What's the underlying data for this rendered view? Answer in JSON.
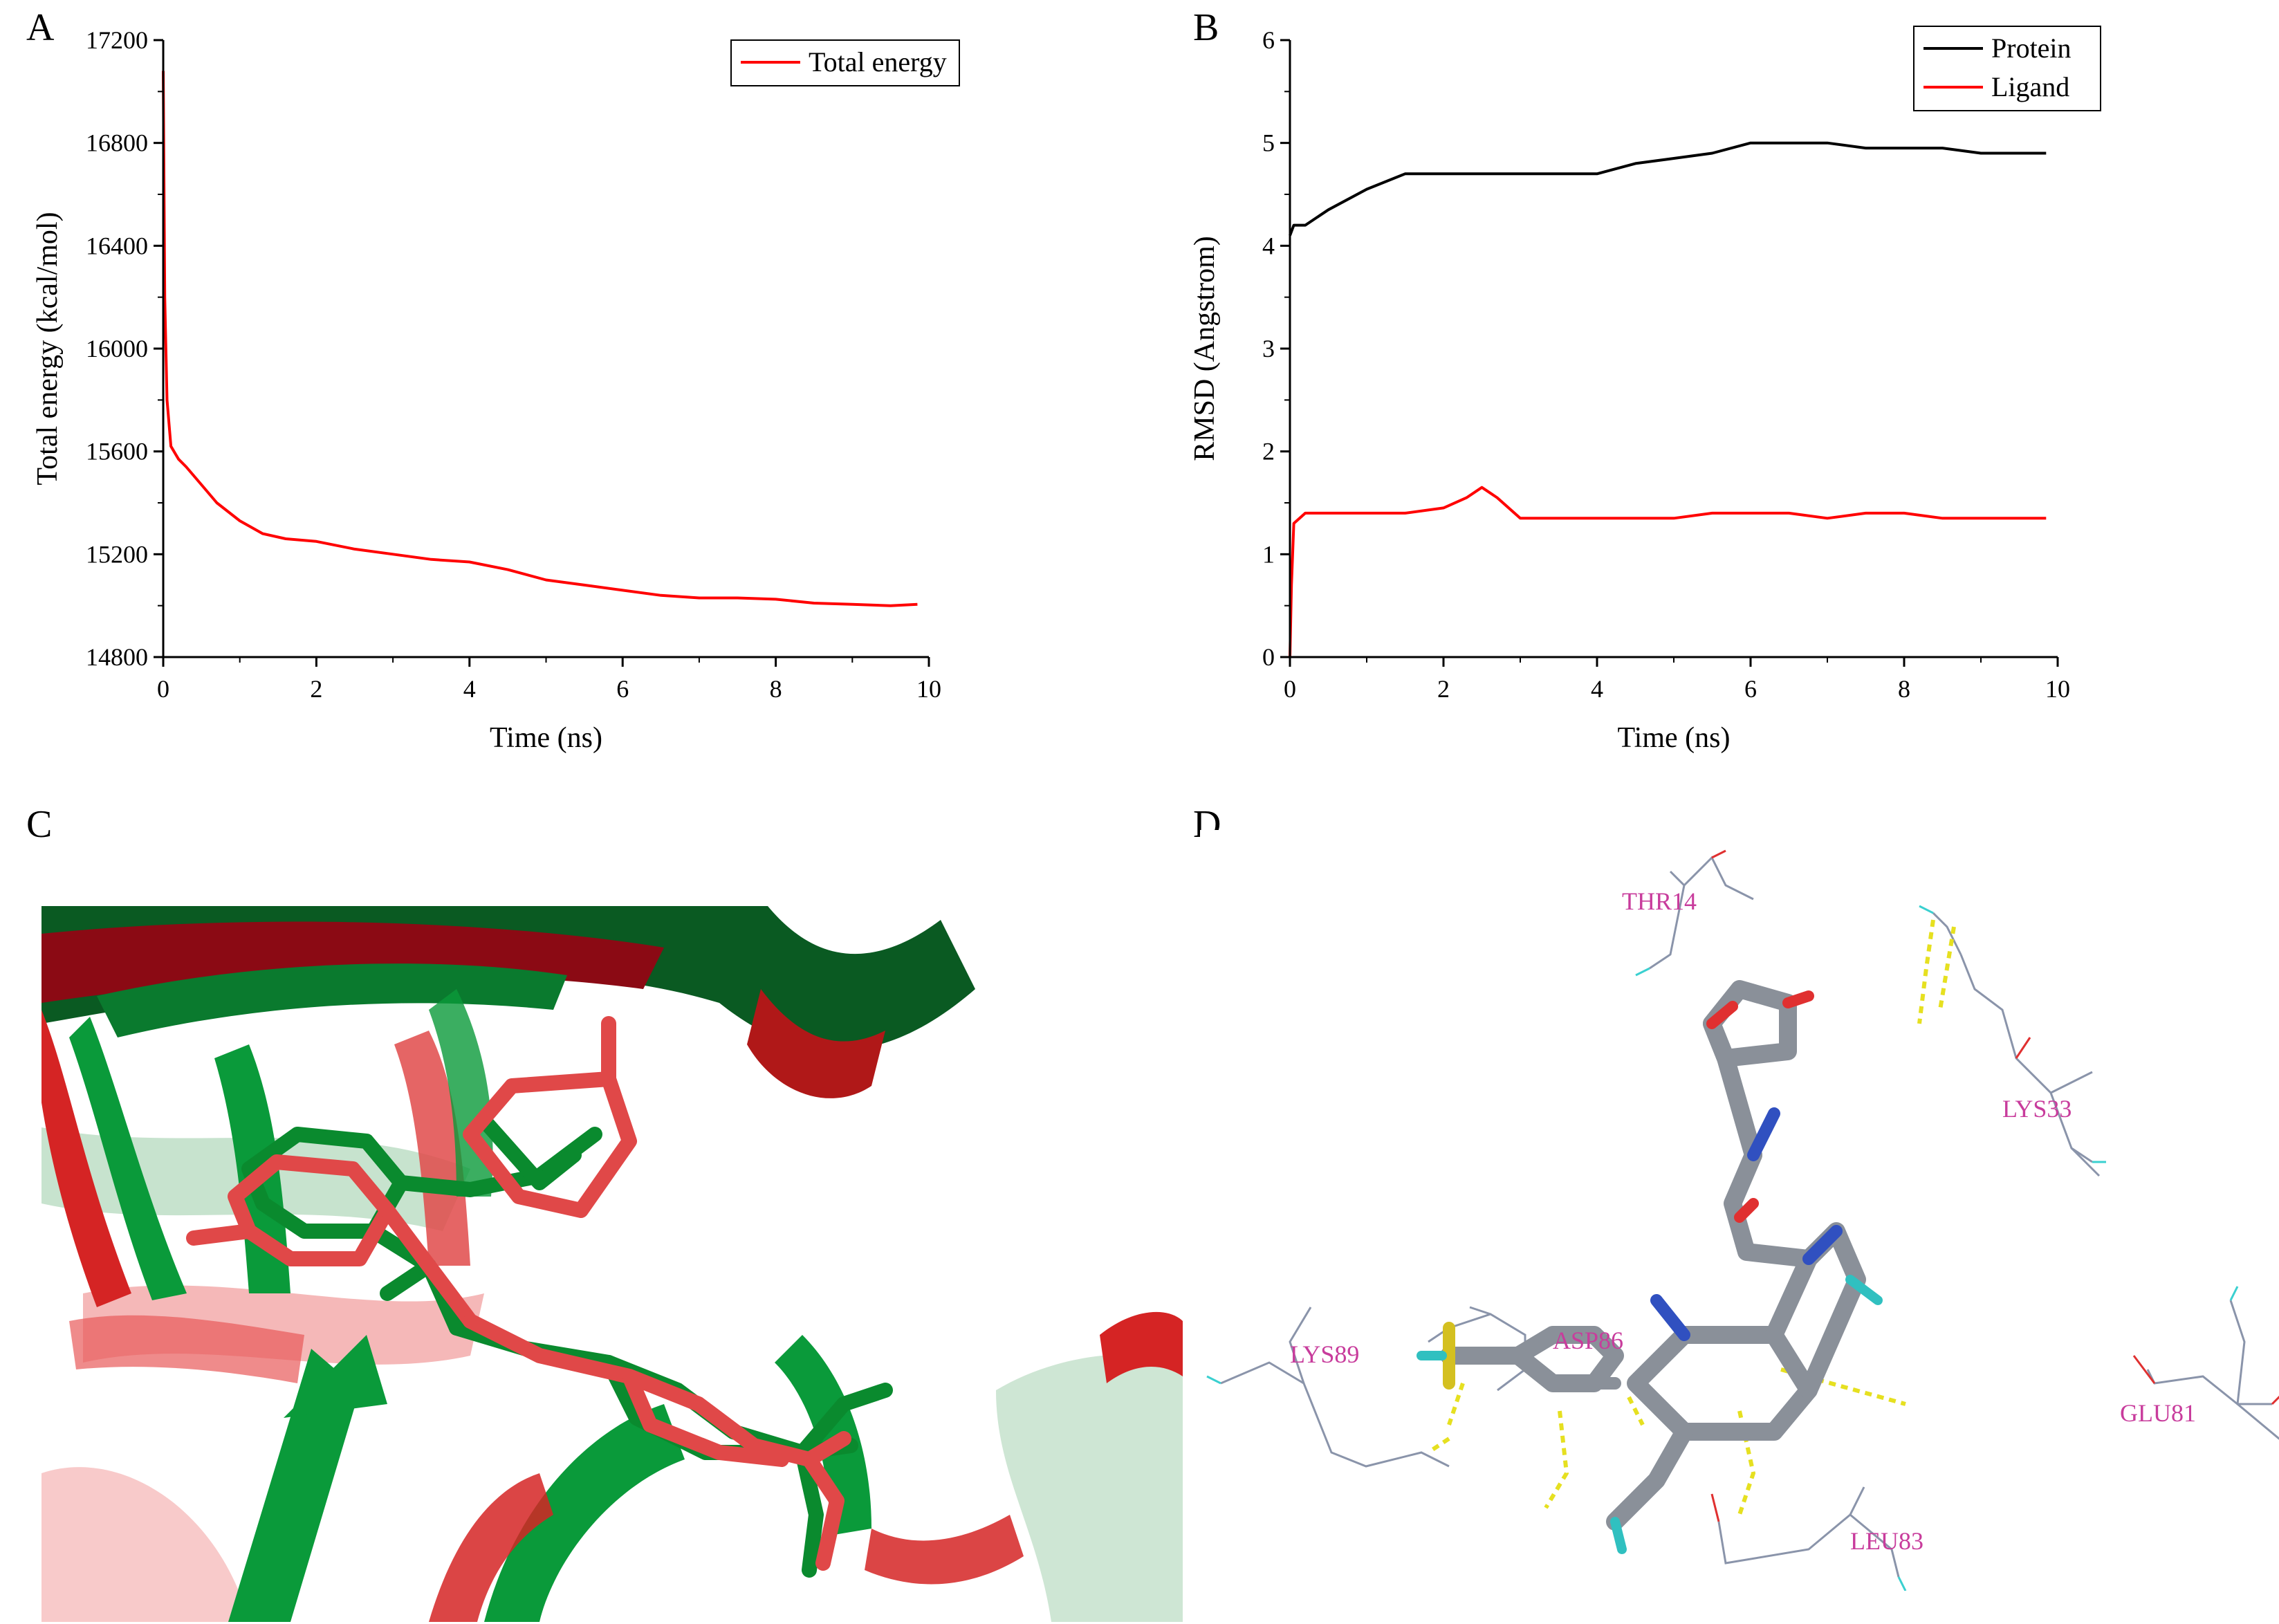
{
  "panels": {
    "a": {
      "letter": "A"
    },
    "b": {
      "letter": "B"
    },
    "c": {
      "letter": "C"
    },
    "d": {
      "letter": "D"
    }
  },
  "chart_data": [
    {
      "id": "A",
      "type": "line",
      "title": "",
      "xlabel": "Time (ns)",
      "ylabel": "Total energy (kcal/mol)",
      "xlim": [
        0,
        10
      ],
      "ylim": [
        14800,
        17200
      ],
      "xticks": [
        0,
        2,
        4,
        6,
        8,
        10
      ],
      "yticks": [
        14800,
        15200,
        15600,
        16000,
        16400,
        16800,
        17200
      ],
      "legend_position": "top-right",
      "series": [
        {
          "name": "Total energy",
          "color": "#ff0000",
          "x": [
            0,
            0.02,
            0.05,
            0.1,
            0.2,
            0.3,
            0.5,
            0.7,
            1.0,
            1.3,
            1.6,
            2.0,
            2.5,
            3.0,
            3.5,
            4.0,
            4.5,
            5.0,
            5.5,
            6.0,
            6.5,
            7.0,
            7.5,
            8.0,
            8.5,
            9.0,
            9.5,
            9.85
          ],
          "y": [
            17080,
            16200,
            15800,
            15620,
            15570,
            15540,
            15470,
            15400,
            15330,
            15280,
            15260,
            15250,
            15220,
            15200,
            15180,
            15170,
            15140,
            15100,
            15080,
            15060,
            15040,
            15030,
            15030,
            15025,
            15010,
            15005,
            15000,
            15005
          ]
        }
      ]
    },
    {
      "id": "B",
      "type": "line",
      "title": "",
      "xlabel": "Time (ns)",
      "ylabel": "RMSD (Angstrom)",
      "xlim": [
        0,
        10
      ],
      "ylim": [
        0,
        6
      ],
      "xticks": [
        0,
        2,
        4,
        6,
        8,
        10
      ],
      "yticks": [
        0,
        1,
        2,
        3,
        4,
        5,
        6
      ],
      "legend_position": "top-right",
      "series": [
        {
          "name": "Protein",
          "color": "#000000",
          "x": [
            0,
            0.05,
            0.2,
            0.5,
            1.0,
            1.5,
            2.0,
            2.5,
            3.0,
            3.5,
            4.0,
            4.5,
            5.0,
            5.5,
            6.0,
            6.5,
            7.0,
            7.5,
            8.0,
            8.5,
            9.0,
            9.5,
            9.85
          ],
          "y": [
            4.1,
            4.2,
            4.2,
            4.35,
            4.55,
            4.7,
            4.7,
            4.7,
            4.7,
            4.7,
            4.7,
            4.8,
            4.85,
            4.9,
            5.0,
            5.0,
            5.0,
            4.95,
            4.95,
            4.95,
            4.9,
            4.9,
            4.9
          ]
        },
        {
          "name": "Ligand",
          "color": "#ff0000",
          "x": [
            0,
            0.02,
            0.05,
            0.2,
            0.5,
            1.0,
            1.5,
            2.0,
            2.3,
            2.5,
            2.7,
            3.0,
            3.2,
            3.5,
            4.0,
            4.5,
            5.0,
            5.5,
            6.0,
            6.5,
            7.0,
            7.5,
            8.0,
            8.5,
            9.0,
            9.5,
            9.85
          ],
          "y": [
            0.0,
            0.7,
            1.3,
            1.4,
            1.4,
            1.4,
            1.4,
            1.45,
            1.55,
            1.65,
            1.55,
            1.35,
            1.35,
            1.35,
            1.35,
            1.35,
            1.35,
            1.4,
            1.4,
            1.4,
            1.35,
            1.4,
            1.4,
            1.35,
            1.35,
            1.35,
            1.35
          ]
        }
      ]
    }
  ],
  "panel_d": {
    "residues": [
      "THR14",
      "LYS33",
      "LYS89",
      "ASP86",
      "GLU81",
      "LEU83"
    ]
  },
  "colors": {
    "red_line": "#ff0000",
    "black_line": "#000000",
    "ribbon_green": "#0a9a3a",
    "ribbon_red": "#d52424",
    "residue_label": "#c83c9c",
    "stick_gray": "#8a9099",
    "hbond_yellow": "#e6e020"
  }
}
